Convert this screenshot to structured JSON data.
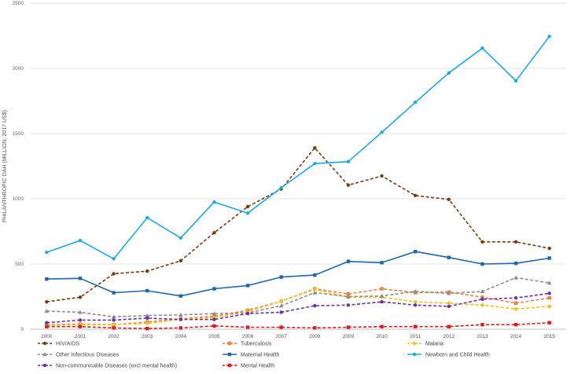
{
  "chart_data": {
    "type": "line",
    "ylabel": "PHILANTHROPIC DAH (MILLION, 2017 US$)",
    "xlabel": "",
    "title": "",
    "ylim": [
      0,
      2500
    ],
    "y_ticks": [
      0,
      500,
      1000,
      1500,
      2000,
      2500
    ],
    "x": [
      "2000",
      "2001",
      "2002",
      "2003",
      "2004",
      "2005",
      "2006",
      "2007",
      "2008",
      "2009",
      "2010",
      "2011",
      "2012",
      "2013",
      "2014",
      "2015"
    ],
    "grid": "horizontal",
    "legend_position": "bottom",
    "series": [
      {
        "name": "HIV/AIDS",
        "color": "#7a3a0f",
        "style": "dashed",
        "marker": "circle",
        "values": [
          210,
          245,
          425,
          445,
          525,
          740,
          940,
          1075,
          1390,
          1105,
          1175,
          1025,
          995,
          670,
          670,
          620
        ]
      },
      {
        "name": "Tuberculosis",
        "color": "#f07f3c",
        "style": "dashed",
        "marker": "square",
        "values": [
          35,
          40,
          35,
          55,
          80,
          100,
          145,
          215,
          310,
          270,
          310,
          280,
          285,
          245,
          200,
          240
        ]
      },
      {
        "name": "Malaria",
        "color": "#f5c018",
        "style": "dashed",
        "marker": "diamond",
        "values": [
          30,
          35,
          35,
          45,
          75,
          90,
          135,
          215,
          305,
          245,
          245,
          210,
          200,
          185,
          155,
          175
        ]
      },
      {
        "name": "Other Infectious Diseases",
        "color": "#8c8c8c",
        "style": "dashed",
        "marker": "triangle",
        "values": [
          140,
          130,
          95,
          105,
          110,
          120,
          125,
          180,
          280,
          250,
          255,
          290,
          275,
          290,
          395,
          355
        ]
      },
      {
        "name": "Maternal Health",
        "color": "#1f66b0",
        "style": "solid",
        "marker": "square",
        "values": [
          385,
          390,
          280,
          295,
          255,
          310,
          335,
          400,
          415,
          520,
          510,
          595,
          550,
          500,
          505,
          545
        ]
      },
      {
        "name": "Newborn and Child Health",
        "color": "#1aaae3",
        "style": "solid",
        "marker": "circle",
        "values": [
          590,
          680,
          540,
          855,
          700,
          975,
          890,
          1085,
          1270,
          1285,
          1510,
          1740,
          1965,
          2155,
          1905,
          2245
        ]
      },
      {
        "name": "Non-communicable Diseases (excl mental health)",
        "color": "#6b2fa6",
        "style": "dashed",
        "marker": "circle",
        "values": [
          50,
          70,
          70,
          85,
          75,
          75,
          120,
          130,
          180,
          185,
          210,
          185,
          175,
          230,
          240,
          275
        ]
      },
      {
        "name": "Mental Health",
        "color": "#e01b1b",
        "style": "dashed",
        "marker": "square",
        "values": [
          20,
          20,
          10,
          5,
          10,
          25,
          15,
          15,
          10,
          15,
          20,
          20,
          20,
          35,
          35,
          50
        ]
      }
    ]
  }
}
